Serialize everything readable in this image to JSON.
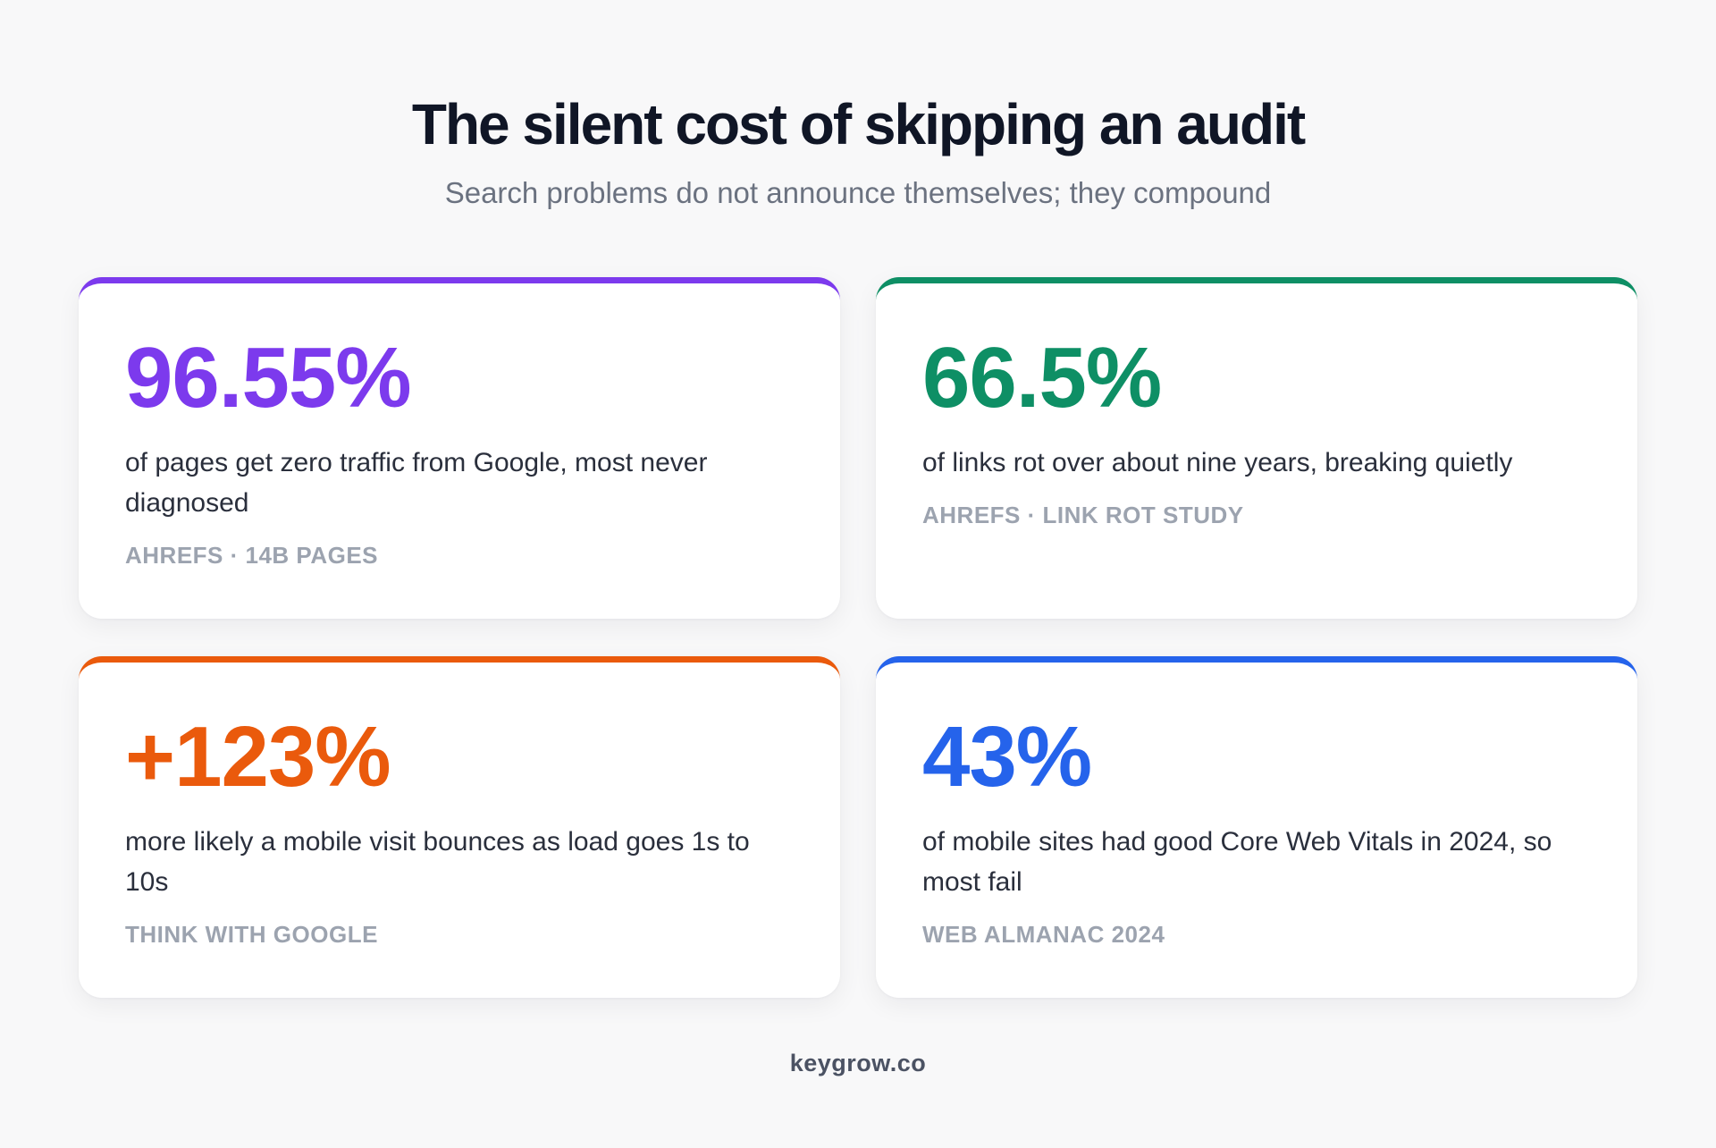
{
  "header": {
    "title": "The silent cost of skipping an audit",
    "subtitle": "Search problems do not announce themselves; they compound"
  },
  "cards": [
    {
      "value": "96.55%",
      "description": "of pages get zero traffic from Google, most never diagnosed",
      "source": "AHREFS · 14B PAGES",
      "accent": "#7c3aed"
    },
    {
      "value": "66.5%",
      "description": "of links rot over about nine years, breaking quietly",
      "source": "AHREFS · LINK ROT STUDY",
      "accent": "#0e8f65"
    },
    {
      "value": "+123%",
      "description": "more likely a mobile visit bounces as load goes 1s to 10s",
      "source": "THINK WITH GOOGLE",
      "accent": "#ea5a0c"
    },
    {
      "value": "43%",
      "description": "of mobile sites had good Core Web Vitals in 2024, so most fail",
      "source": "WEB ALMANAC 2024",
      "accent": "#2563eb"
    }
  ],
  "footer": {
    "brand": "keygrow.co"
  }
}
